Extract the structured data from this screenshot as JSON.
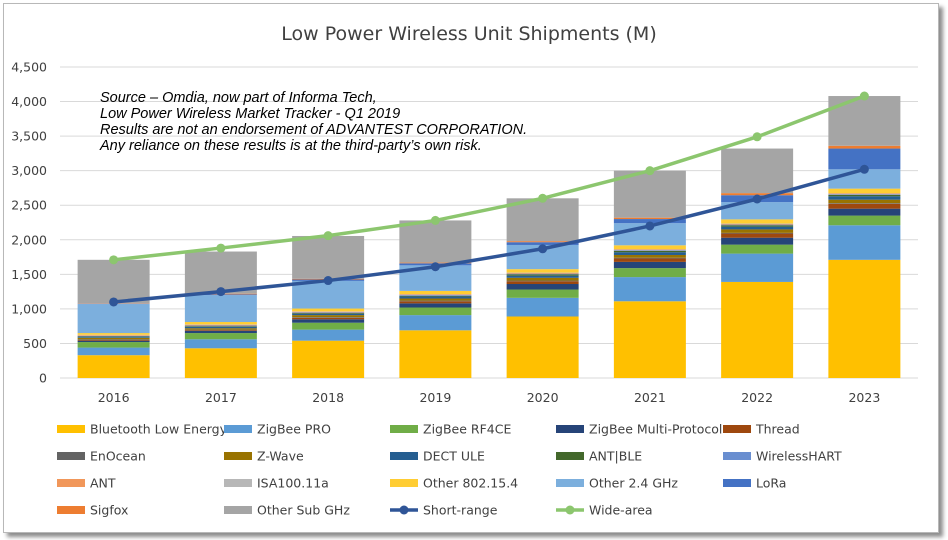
{
  "chart_data": {
    "type": "bar",
    "stacked": true,
    "title": "Low Power Wireless Unit Shipments (M)",
    "xlabel": "",
    "ylabel": "",
    "categories": [
      "2016",
      "2017",
      "2018",
      "2019",
      "2020",
      "2021",
      "2022",
      "2023"
    ],
    "ylim": [
      0,
      4500
    ],
    "yticks": [
      0,
      500,
      1000,
      1500,
      2000,
      2500,
      3000,
      3500,
      4000,
      4500
    ],
    "ytick_labels": [
      "0",
      "500",
      "1,000",
      "1,500",
      "2,000",
      "2,500",
      "3,000",
      "3,500",
      "4,000",
      "4,500"
    ],
    "grid": true,
    "legend_position": "bottom",
    "annotation": [
      "Source – Omdia, now part of Informa Tech,",
      "Low Power Wireless Market Tracker - Q1 2019",
      "Results are not an endorsement of ADVANTEST CORPORATION.",
      "Any reliance on these results is at the third-party’s own risk."
    ],
    "series": [
      {
        "name": "Bluetooth Low Energy",
        "color": "#FFC000",
        "values": [
          330,
          430,
          540,
          690,
          890,
          1110,
          1390,
          1710
        ]
      },
      {
        "name": "ZigBee PRO",
        "color": "#5B9BD5",
        "values": [
          110,
          130,
          160,
          220,
          270,
          350,
          410,
          500
        ]
      },
      {
        "name": "ZigBee RF4CE",
        "color": "#70AD47",
        "values": [
          80,
          90,
          100,
          110,
          120,
          130,
          130,
          140
        ]
      },
      {
        "name": "ZigBee Multi-Protocol",
        "color": "#264478",
        "values": [
          20,
          30,
          50,
          60,
          80,
          90,
          100,
          100
        ]
      },
      {
        "name": "Thread",
        "color": "#9E480E",
        "values": [
          10,
          10,
          20,
          30,
          40,
          50,
          60,
          70
        ]
      },
      {
        "name": "EnOcean",
        "color": "#636363",
        "values": [
          10,
          10,
          10,
          10,
          10,
          10,
          10,
          10
        ]
      },
      {
        "name": "Z-Wave",
        "color": "#997300",
        "values": [
          20,
          20,
          30,
          30,
          40,
          40,
          50,
          50
        ]
      },
      {
        "name": "DECT ULE",
        "color": "#255E91",
        "values": [
          10,
          20,
          20,
          30,
          30,
          40,
          40,
          50
        ]
      },
      {
        "name": "ANT|BLE",
        "color": "#43682B",
        "values": [
          10,
          10,
          10,
          10,
          20,
          20,
          20,
          20
        ]
      },
      {
        "name": "WirelessHART",
        "color": "#698ED0",
        "values": [
          10,
          10,
          10,
          10,
          10,
          10,
          10,
          10
        ]
      },
      {
        "name": "ANT",
        "color": "#F1975A",
        "values": [
          10,
          10,
          10,
          10,
          10,
          10,
          10,
          10
        ]
      },
      {
        "name": "ISA100.11a",
        "color": "#B7B7B7",
        "values": [
          5,
          5,
          5,
          5,
          5,
          5,
          5,
          5
        ]
      },
      {
        "name": "Other 802.15.4",
        "color": "#FFCD33",
        "values": [
          25,
          35,
          40,
          45,
          50,
          55,
          60,
          65
        ]
      },
      {
        "name": "Other 2.4 GHz",
        "color": "#7CAFDD",
        "values": [
          420,
          390,
          400,
          370,
          350,
          320,
          250,
          280
        ]
      },
      {
        "name": "LoRa",
        "color": "#4472C4",
        "values": [
          5,
          10,
          20,
          30,
          40,
          60,
          100,
          300
        ]
      },
      {
        "name": "Sigfox",
        "color": "#ED7D31",
        "values": [
          5,
          10,
          10,
          10,
          15,
          20,
          30,
          40
        ]
      },
      {
        "name": "Other Sub GHz",
        "color": "#A5A5A5",
        "values": [
          630,
          610,
          620,
          610,
          620,
          680,
          645,
          720
        ]
      }
    ],
    "lines": [
      {
        "name": "Short-range",
        "color": "#2F5597",
        "values": [
          1100,
          1250,
          1410,
          1610,
          1870,
          2200,
          2590,
          3020
        ]
      },
      {
        "name": "Wide-area",
        "color": "#8CC66E",
        "values": [
          1710,
          1880,
          2060,
          2280,
          2600,
          3000,
          3490,
          4080
        ]
      }
    ]
  }
}
